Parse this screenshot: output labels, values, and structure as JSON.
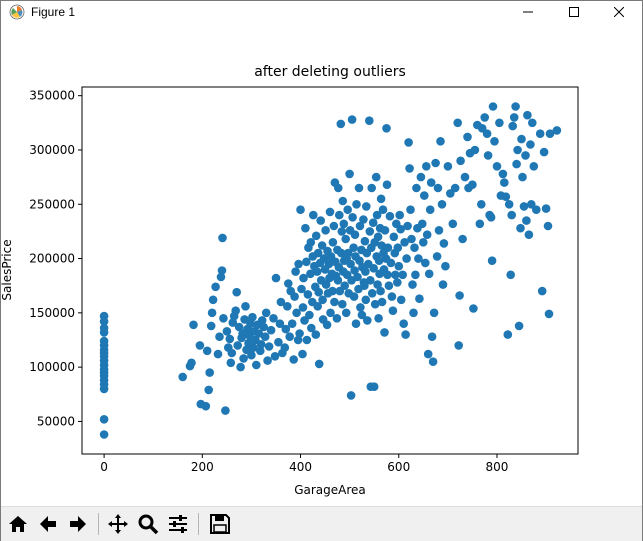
{
  "window": {
    "title": "Figure 1",
    "icons": {
      "app": "matplotlib-logo-icon",
      "minimize": "minimize-icon",
      "maximize": "maximize-icon",
      "close": "close-icon"
    }
  },
  "toolbar": {
    "buttons": [
      {
        "name": "home",
        "icon": "home-icon"
      },
      {
        "name": "back",
        "icon": "arrow-left-icon"
      },
      {
        "name": "forward",
        "icon": "arrow-right-icon"
      },
      {
        "name": "pan",
        "icon": "move-icon"
      },
      {
        "name": "zoom",
        "icon": "magnifier-icon"
      },
      {
        "name": "subplots",
        "icon": "sliders-icon"
      },
      {
        "name": "save",
        "icon": "floppy-disk-icon"
      }
    ]
  },
  "chart_data": {
    "type": "scatter",
    "title": "after deleting outliers",
    "xlabel": "GarageArea",
    "ylabel": "SalesPrice",
    "xlim": [
      -45,
      965
    ],
    "ylim": [
      20000,
      358000
    ],
    "xticks": [
      0,
      200,
      400,
      600,
      800
    ],
    "yticks": [
      50000,
      100000,
      150000,
      200000,
      250000,
      300000,
      350000
    ],
    "grid": false,
    "legend": "none",
    "color": "#1f77b4",
    "points": [
      [
        0,
        147000
      ],
      [
        0,
        142000
      ],
      [
        0,
        136000
      ],
      [
        0,
        132000
      ],
      [
        0,
        124000
      ],
      [
        0,
        120000
      ],
      [
        0,
        116000
      ],
      [
        0,
        113000
      ],
      [
        0,
        110000
      ],
      [
        0,
        106000
      ],
      [
        0,
        102000
      ],
      [
        0,
        98000
      ],
      [
        0,
        95000
      ],
      [
        0,
        92000
      ],
      [
        0,
        88000
      ],
      [
        0,
        84000
      ],
      [
        0,
        80000
      ],
      [
        0,
        52000
      ],
      [
        0,
        38000
      ],
      [
        160,
        91000
      ],
      [
        175,
        101000
      ],
      [
        178,
        104000
      ],
      [
        182,
        139000
      ],
      [
        195,
        120000
      ],
      [
        197,
        66000
      ],
      [
        207,
        64000
      ],
      [
        210,
        115000
      ],
      [
        213,
        79000
      ],
      [
        215,
        95000
      ],
      [
        218,
        138000
      ],
      [
        220,
        150000
      ],
      [
        222,
        162000
      ],
      [
        227,
        174000
      ],
      [
        232,
        112000
      ],
      [
        235,
        128000
      ],
      [
        238,
        183000
      ],
      [
        240,
        189000
      ],
      [
        241,
        219000
      ],
      [
        243,
        145000
      ],
      [
        247,
        60000
      ],
      [
        250,
        133000
      ],
      [
        253,
        118000
      ],
      [
        256,
        126000
      ],
      [
        258,
        104000
      ],
      [
        260,
        113000
      ],
      [
        262,
        141000
      ],
      [
        265,
        147000
      ],
      [
        268,
        152000
      ],
      [
        270,
        169000
      ],
      [
        272,
        120000
      ],
      [
        275,
        137000
      ],
      [
        278,
        100000
      ],
      [
        280,
        127000
      ],
      [
        282,
        131000
      ],
      [
        284,
        108000
      ],
      [
        286,
        144000
      ],
      [
        288,
        156000
      ],
      [
        290,
        116000
      ],
      [
        292,
        135000
      ],
      [
        294,
        122000
      ],
      [
        296,
        129000
      ],
      [
        298,
        140000
      ],
      [
        300,
        111000
      ],
      [
        302,
        146000
      ],
      [
        304,
        118000
      ],
      [
        306,
        133000
      ],
      [
        308,
        125000
      ],
      [
        310,
        102000
      ],
      [
        312,
        139000
      ],
      [
        315,
        131000
      ],
      [
        318,
        115000
      ],
      [
        320,
        121000
      ],
      [
        322,
        143000
      ],
      [
        325,
        137000
      ],
      [
        328,
        128000
      ],
      [
        330,
        150000
      ],
      [
        333,
        106000
      ],
      [
        336,
        119000
      ],
      [
        340,
        134000
      ],
      [
        345,
        145000
      ],
      [
        348,
        110000
      ],
      [
        350,
        182000
      ],
      [
        355,
        123000
      ],
      [
        358,
        140000
      ],
      [
        360,
        160000
      ],
      [
        363,
        113000
      ],
      [
        368,
        118000
      ],
      [
        370,
        135000
      ],
      [
        373,
        156000
      ],
      [
        375,
        177000
      ],
      [
        378,
        128000
      ],
      [
        380,
        170000
      ],
      [
        383,
        140000
      ],
      [
        386,
        107000
      ],
      [
        388,
        165000
      ],
      [
        390,
        188000
      ],
      [
        392,
        150000
      ],
      [
        395,
        125000
      ],
      [
        396,
        195000
      ],
      [
        398,
        131000
      ],
      [
        400,
        245000
      ],
      [
        402,
        172000
      ],
      [
        404,
        112000
      ],
      [
        405,
        155000
      ],
      [
        406,
        182000
      ],
      [
        408,
        143000
      ],
      [
        410,
        228000
      ],
      [
        412,
        197000
      ],
      [
        413,
        125000
      ],
      [
        415,
        167000
      ],
      [
        416,
        210000
      ],
      [
        418,
        148000
      ],
      [
        420,
        186000
      ],
      [
        421,
        215000
      ],
      [
        422,
        136000
      ],
      [
        424,
        160000
      ],
      [
        425,
        202000
      ],
      [
        426,
        240000
      ],
      [
        428,
        193000
      ],
      [
        430,
        174000
      ],
      [
        431,
        130000
      ],
      [
        432,
        221000
      ],
      [
        434,
        188000
      ],
      [
        435,
        156000
      ],
      [
        436,
        205000
      ],
      [
        437,
        169000
      ],
      [
        438,
        103000
      ],
      [
        440,
        196000
      ],
      [
        441,
        235000
      ],
      [
        442,
        180000
      ],
      [
        444,
        212000
      ],
      [
        445,
        162000
      ],
      [
        446,
        144000
      ],
      [
        448,
        200000
      ],
      [
        450,
        190000
      ],
      [
        451,
        226000
      ],
      [
        452,
        176000
      ],
      [
        454,
        139000
      ],
      [
        455,
        207000
      ],
      [
        456,
        168000
      ],
      [
        458,
        195000
      ],
      [
        459,
        182000
      ],
      [
        460,
        243000
      ],
      [
        461,
        150000
      ],
      [
        462,
        202000
      ],
      [
        464,
        186000
      ],
      [
        465,
        170000
      ],
      [
        466,
        215000
      ],
      [
        468,
        230000
      ],
      [
        469,
        160000
      ],
      [
        470,
        270000
      ],
      [
        471,
        197000
      ],
      [
        472,
        184000
      ],
      [
        474,
        145000
      ],
      [
        475,
        208000
      ],
      [
        476,
        180000
      ],
      [
        477,
        265000
      ],
      [
        478,
        192000
      ],
      [
        479,
        240000
      ],
      [
        480,
        170000
      ],
      [
        482,
        324000
      ],
      [
        483,
        205000
      ],
      [
        484,
        225000
      ],
      [
        485,
        158000
      ],
      [
        486,
        253000
      ],
      [
        487,
        188000
      ],
      [
        488,
        232000
      ],
      [
        489,
        198000
      ],
      [
        490,
        175000
      ],
      [
        492,
        218000
      ],
      [
        493,
        150000
      ],
      [
        494,
        200000
      ],
      [
        495,
        185000
      ],
      [
        496,
        245000
      ],
      [
        497,
        205000
      ],
      [
        498,
        168000
      ],
      [
        500,
        278000
      ],
      [
        501,
        226000
      ],
      [
        502,
        195000
      ],
      [
        503,
        74000
      ],
      [
        504,
        180000
      ],
      [
        505,
        328000
      ],
      [
        506,
        238000
      ],
      [
        508,
        210000
      ],
      [
        509,
        165000
      ],
      [
        510,
        189000
      ],
      [
        511,
        222000
      ],
      [
        512,
        202000
      ],
      [
        513,
        140000
      ],
      [
        514,
        250000
      ],
      [
        516,
        183000
      ],
      [
        518,
        172000
      ],
      [
        519,
        265000
      ],
      [
        520,
        198000
      ],
      [
        521,
        230000
      ],
      [
        522,
        155000
      ],
      [
        524,
        208000
      ],
      [
        525,
        148000
      ],
      [
        526,
        192000
      ],
      [
        528,
        236000
      ],
      [
        529,
        178000
      ],
      [
        530,
        175000
      ],
      [
        531,
        216000
      ],
      [
        532,
        188000
      ],
      [
        533,
        162000
      ],
      [
        534,
        248000
      ],
      [
        535,
        205000
      ],
      [
        536,
        143000
      ],
      [
        538,
        195000
      ],
      [
        540,
        327000
      ],
      [
        541,
        225000
      ],
      [
        542,
        180000
      ],
      [
        543,
        82000
      ],
      [
        544,
        210000
      ],
      [
        545,
        265000
      ],
      [
        546,
        168000
      ],
      [
        548,
        233000
      ],
      [
        549,
        191000
      ],
      [
        550,
        82000
      ],
      [
        551,
        215000
      ],
      [
        552,
        158000
      ],
      [
        554,
        275000
      ],
      [
        555,
        202000
      ],
      [
        556,
        240000
      ],
      [
        557,
        176000
      ],
      [
        558,
        220000
      ],
      [
        559,
        145000
      ],
      [
        560,
        198000
      ],
      [
        561,
        186000
      ],
      [
        562,
        228000
      ],
      [
        563,
        170000
      ],
      [
        564,
        255000
      ],
      [
        565,
        212000
      ],
      [
        566,
        160000
      ],
      [
        568,
        245000
      ],
      [
        569,
        205000
      ],
      [
        570,
        190000
      ],
      [
        571,
        132000
      ],
      [
        572,
        226000
      ],
      [
        574,
        200000
      ],
      [
        575,
        320000
      ],
      [
        576,
        268000
      ],
      [
        577,
        185000
      ],
      [
        578,
        210000
      ],
      [
        580,
        175000
      ],
      [
        582,
        239000
      ],
      [
        584,
        196000
      ],
      [
        586,
        165000
      ],
      [
        588,
        152000
      ],
      [
        590,
        220000
      ],
      [
        592,
        205000
      ],
      [
        593,
        185000
      ],
      [
        595,
        232000
      ],
      [
        597,
        178000
      ],
      [
        598,
        210000
      ],
      [
        600,
        193000
      ],
      [
        602,
        240000
      ],
      [
        604,
        227000
      ],
      [
        605,
        162000
      ],
      [
        608,
        185000
      ],
      [
        610,
        140000
      ],
      [
        612,
        215000
      ],
      [
        614,
        130000
      ],
      [
        616,
        200000
      ],
      [
        618,
        230000
      ],
      [
        620,
        307000
      ],
      [
        622,
        283000
      ],
      [
        624,
        245000
      ],
      [
        626,
        218000
      ],
      [
        628,
        176000
      ],
      [
        630,
        150000
      ],
      [
        632,
        210000
      ],
      [
        634,
        185000
      ],
      [
        636,
        265000
      ],
      [
        638,
        228000
      ],
      [
        640,
        200000
      ],
      [
        642,
        163000
      ],
      [
        645,
        275000
      ],
      [
        648,
        232000
      ],
      [
        650,
        215000
      ],
      [
        652,
        258000
      ],
      [
        654,
        196000
      ],
      [
        656,
        285000
      ],
      [
        658,
        222000
      ],
      [
        660,
        112000
      ],
      [
        662,
        186000
      ],
      [
        664,
        245000
      ],
      [
        666,
        270000
      ],
      [
        668,
        128000
      ],
      [
        670,
        105000
      ],
      [
        672,
        150000
      ],
      [
        675,
        288000
      ],
      [
        678,
        202000
      ],
      [
        680,
        265000
      ],
      [
        682,
        226000
      ],
      [
        685,
        308000
      ],
      [
        688,
        250000
      ],
      [
        690,
        176000
      ],
      [
        692,
        214000
      ],
      [
        695,
        193000
      ],
      [
        700,
        285000
      ],
      [
        705,
        260000
      ],
      [
        710,
        232000
      ],
      [
        715,
        265000
      ],
      [
        720,
        325000
      ],
      [
        722,
        120000
      ],
      [
        724,
        166000
      ],
      [
        726,
        290000
      ],
      [
        730,
        218000
      ],
      [
        735,
        275000
      ],
      [
        740,
        312000
      ],
      [
        742,
        265000
      ],
      [
        745,
        297000
      ],
      [
        750,
        268000
      ],
      [
        752,
        154000
      ],
      [
        755,
        300000
      ],
      [
        760,
        323000
      ],
      [
        765,
        232000
      ],
      [
        768,
        250000
      ],
      [
        770,
        320000
      ],
      [
        775,
        330000
      ],
      [
        780,
        315000
      ],
      [
        782,
        295000
      ],
      [
        785,
        240000
      ],
      [
        788,
        238000
      ],
      [
        790,
        198000
      ],
      [
        792,
        340000
      ],
      [
        795,
        308000
      ],
      [
        800,
        285000
      ],
      [
        805,
        325000
      ],
      [
        808,
        258000
      ],
      [
        812,
        278000
      ],
      [
        815,
        270000
      ],
      [
        818,
        257000
      ],
      [
        822,
        130000
      ],
      [
        825,
        250000
      ],
      [
        828,
        185000
      ],
      [
        830,
        240000
      ],
      [
        832,
        322000
      ],
      [
        835,
        330000
      ],
      [
        838,
        340000
      ],
      [
        840,
        287000
      ],
      [
        842,
        300000
      ],
      [
        845,
        138000
      ],
      [
        848,
        228000
      ],
      [
        850,
        310000
      ],
      [
        852,
        275000
      ],
      [
        855,
        248000
      ],
      [
        858,
        295000
      ],
      [
        860,
        235000
      ],
      [
        862,
        332000
      ],
      [
        865,
        222000
      ],
      [
        868,
        305000
      ],
      [
        870,
        250000
      ],
      [
        872,
        325000
      ],
      [
        875,
        285000
      ],
      [
        880,
        245000
      ],
      [
        888,
        315000
      ],
      [
        892,
        170000
      ],
      [
        896,
        298000
      ],
      [
        900,
        246000
      ],
      [
        904,
        230000
      ],
      [
        906,
        149000
      ],
      [
        908,
        315000
      ],
      [
        922,
        318000
      ]
    ]
  }
}
